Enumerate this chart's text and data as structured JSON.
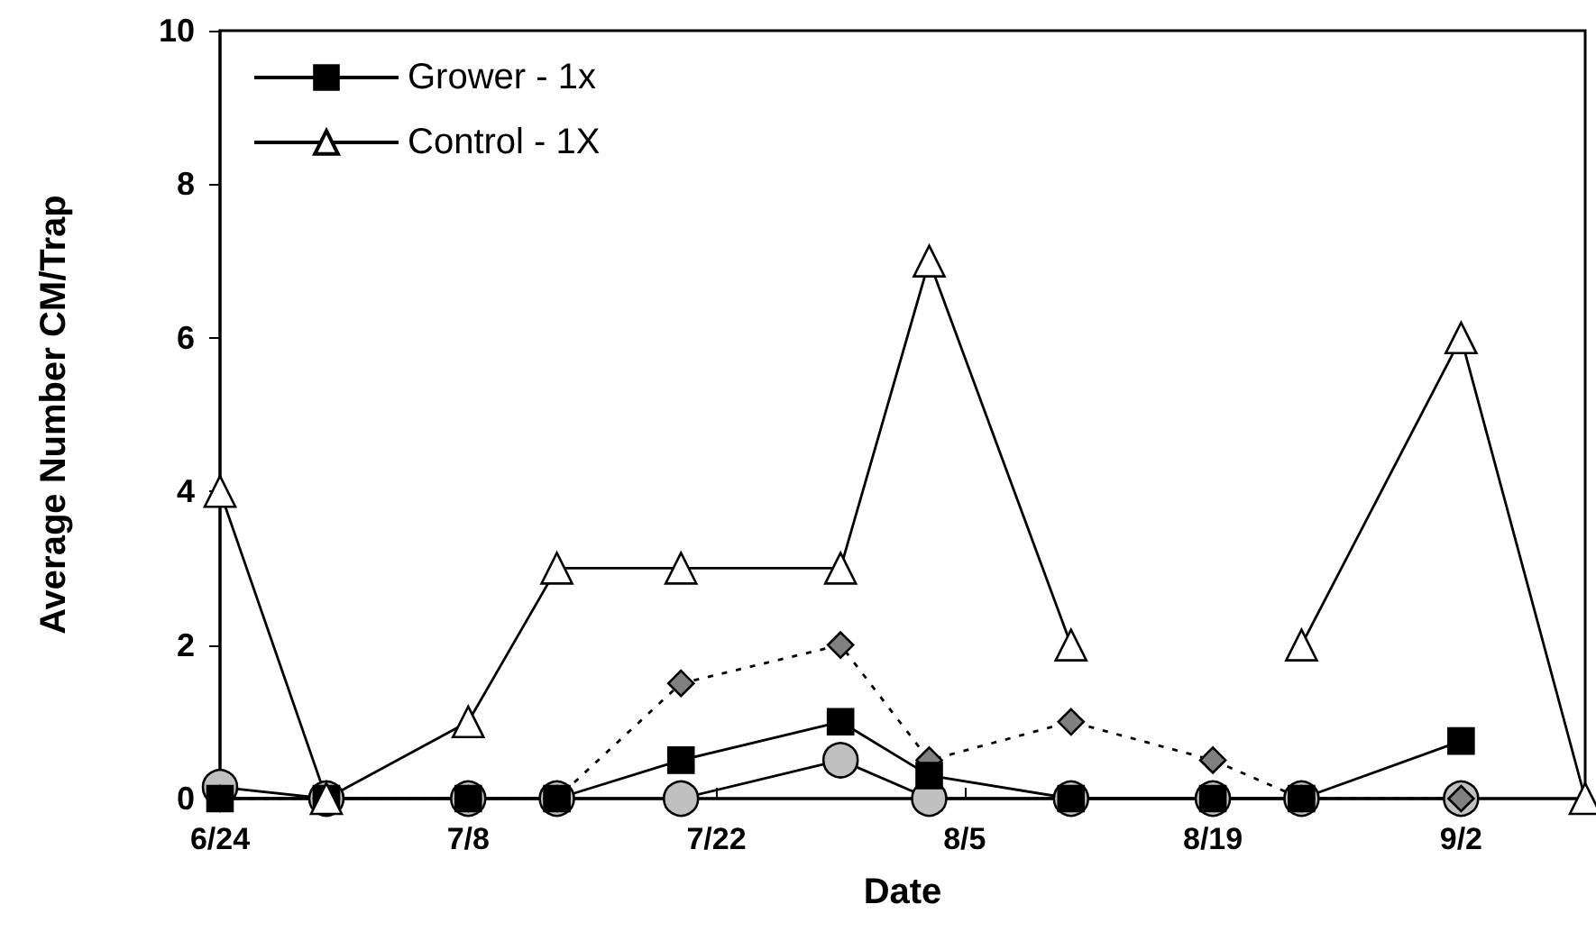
{
  "chart_data": {
    "type": "line",
    "xlabel": "Date",
    "ylabel": "Average Number CM/Trap",
    "x": [
      "--06-24",
      "--06-30",
      "--07-08",
      "--07-13",
      "--07-20",
      "--07-29",
      "--08-03",
      "--08-11",
      "--08-19",
      "--08-24",
      "--09-02",
      "--09-09"
    ],
    "series": [
      {
        "color": "#c0c0c0",
        "marker": "circle",
        "line_style": "solid",
        "values": [
          0.15,
          0,
          0,
          0,
          0,
          0.5,
          0,
          0,
          0,
          0,
          0,
          null
        ]
      },
      {
        "color": "#808080",
        "marker": "diamond",
        "line_style": "dotted",
        "values": [
          0,
          0,
          0,
          0,
          1.5,
          2,
          0.5,
          1,
          0.5,
          0,
          0,
          null
        ]
      },
      {
        "name": "Grower - 1x",
        "color": "#000000",
        "marker": "square",
        "line_style": "solid",
        "values": [
          0,
          0,
          0,
          0,
          0.5,
          1,
          0.3,
          0,
          0,
          0,
          0.75,
          null
        ]
      },
      {
        "name": "Control - 1X",
        "color": "#ffffff",
        "marker": "triangle",
        "line_style": "solid",
        "values": [
          4,
          0,
          1,
          3,
          3,
          3,
          7,
          2,
          null,
          2,
          6,
          0
        ]
      }
    ],
    "xlim": [
      "--06-24",
      "--09-09"
    ],
    "xticks": [
      {
        "value": "--06-24",
        "label": "6/24"
      },
      {
        "value": "--07-08",
        "label": "7/8"
      },
      {
        "value": "--07-22",
        "label": "7/22"
      },
      {
        "value": "--08-05",
        "label": "8/5"
      },
      {
        "value": "--08-19",
        "label": "8/19"
      },
      {
        "value": "--09-02",
        "label": "9/2"
      }
    ],
    "ylim": [
      0,
      10
    ],
    "yticks": [
      0,
      2,
      4,
      6,
      8,
      10
    ],
    "grid": false,
    "legend": "top left"
  }
}
